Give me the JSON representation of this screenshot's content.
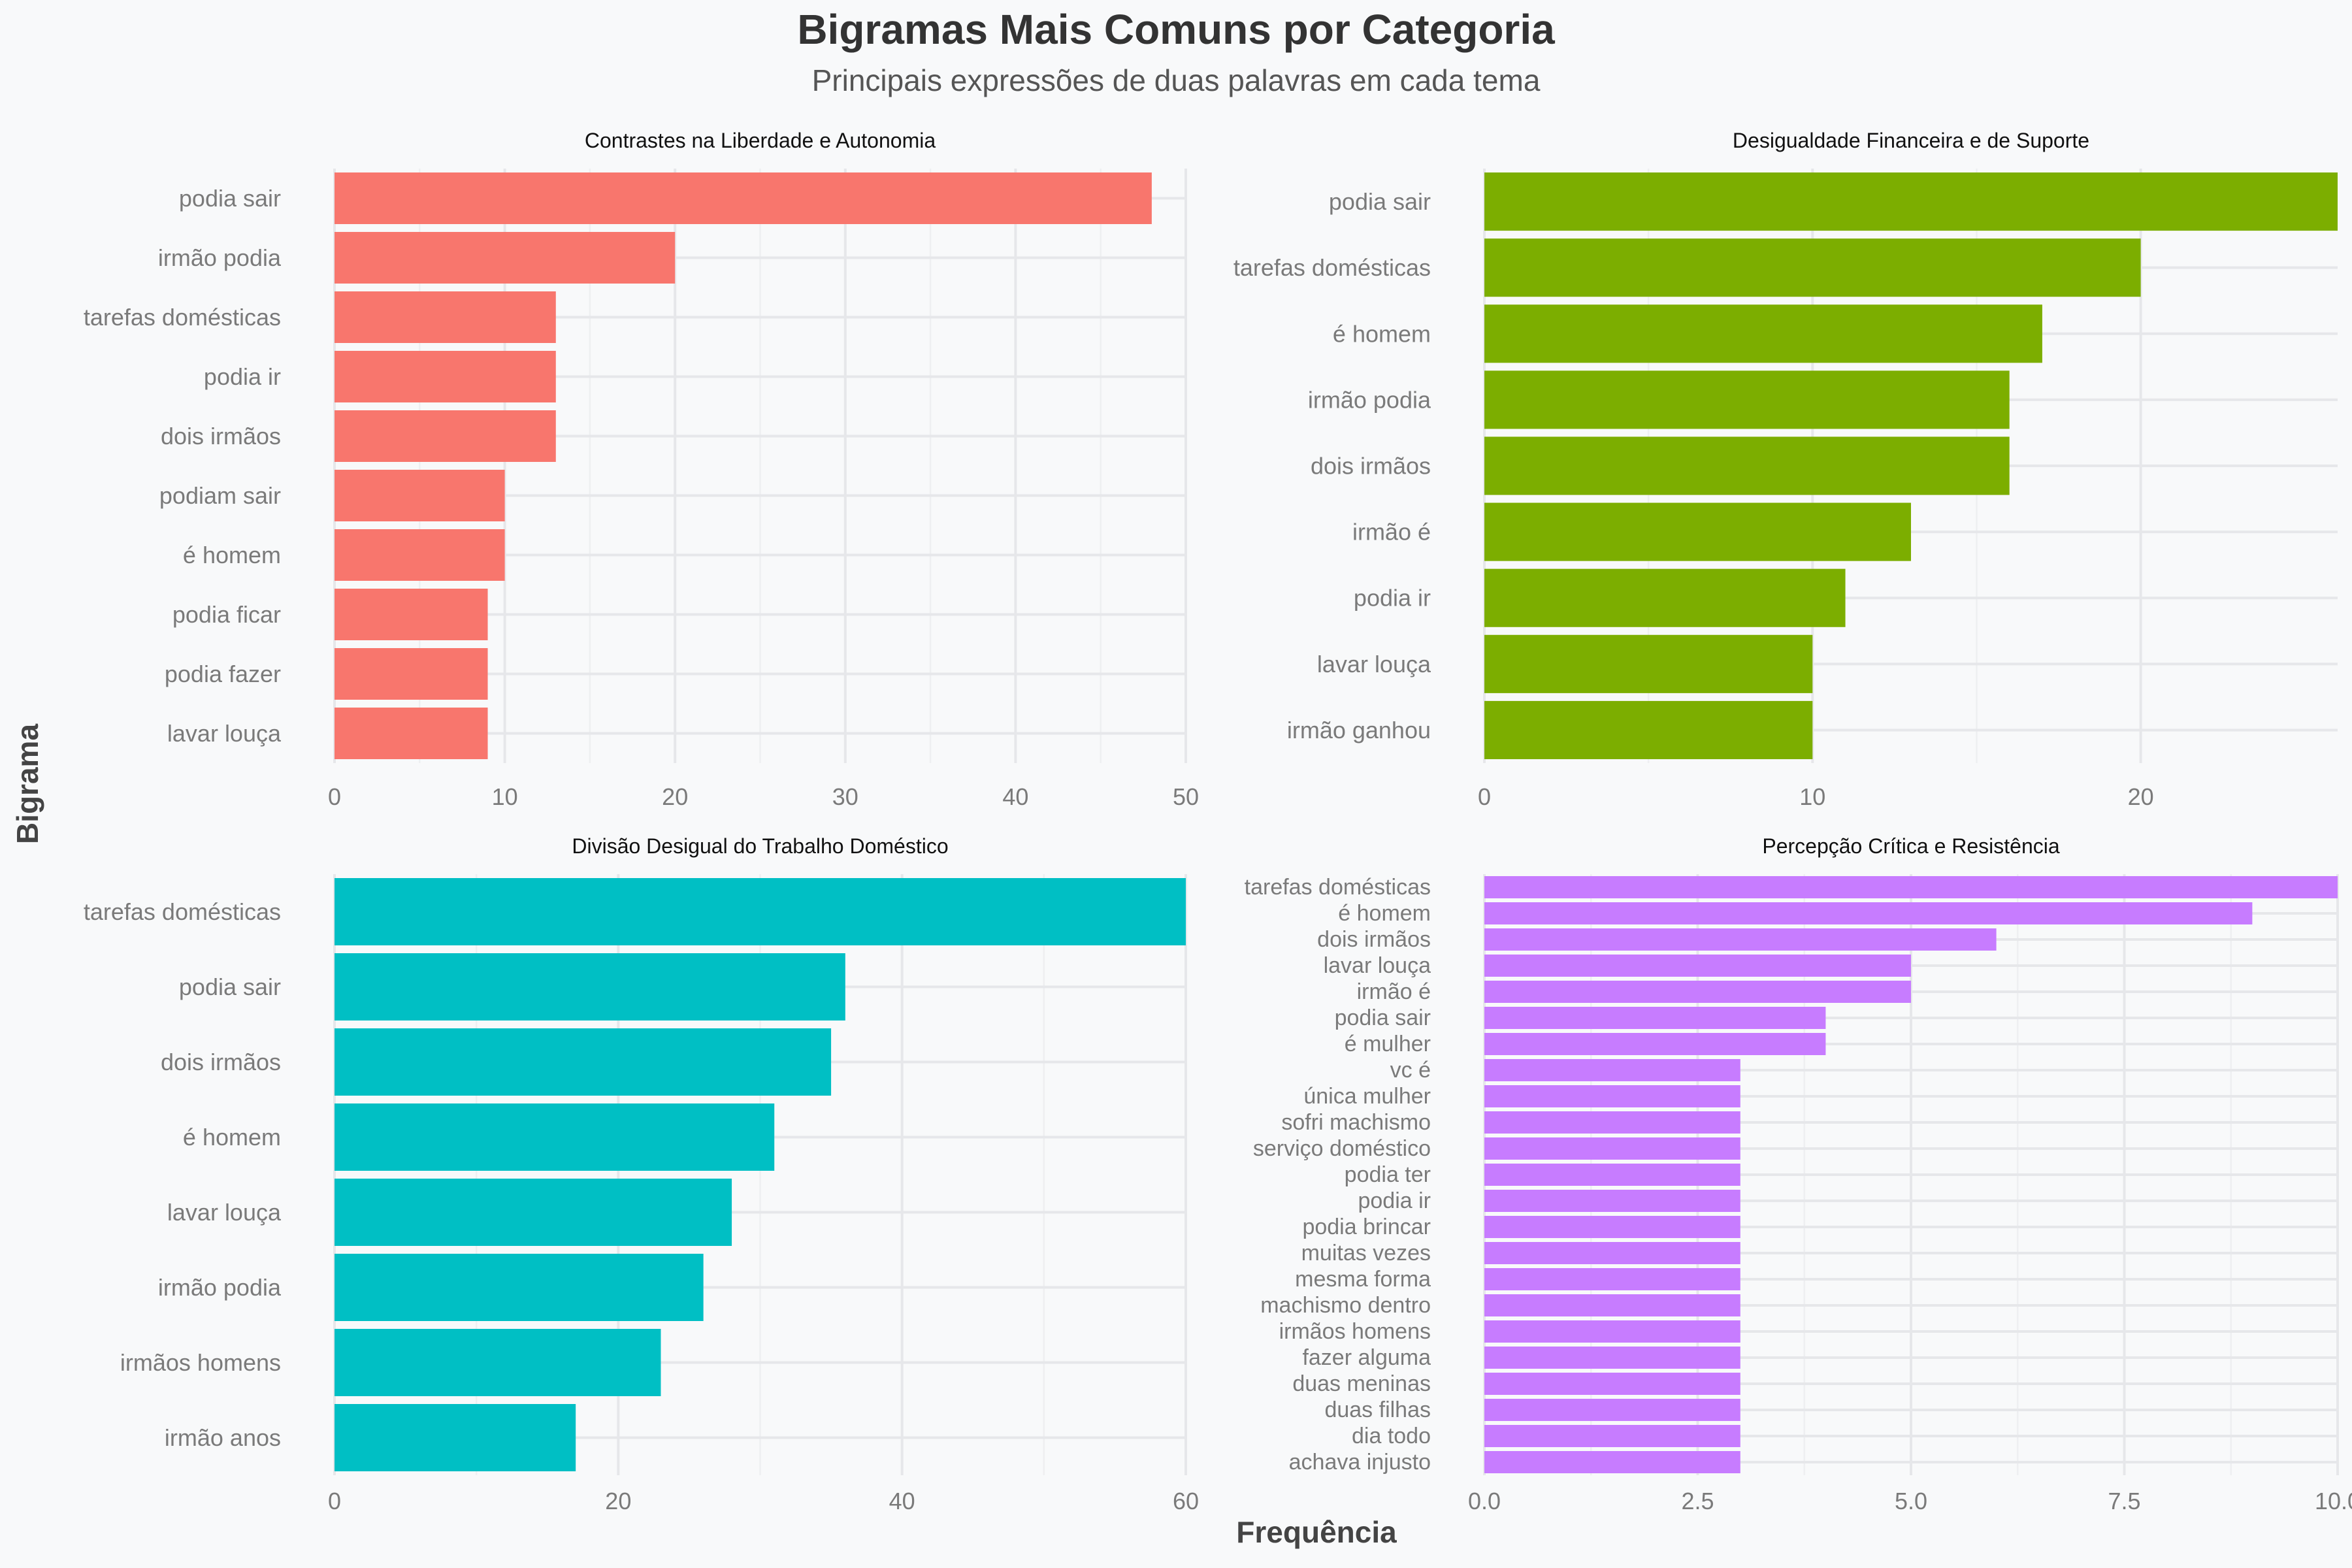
{
  "title": "Bigramas Mais Comuns por Categoria",
  "subtitle": "Principais expressões de duas palavras em cada tema",
  "ylabel": "Bigrama",
  "xlabel": "Frequência",
  "chart_data": [
    {
      "type": "bar",
      "orientation": "horizontal",
      "title": "Contrastes na Liberdade e Autonomia",
      "color": "#F8766D",
      "categories": [
        "podia sair",
        "irmão podia",
        "tarefas domésticas",
        "podia ir",
        "dois irmãos",
        "podiam sair",
        "é homem",
        "podia ficar",
        "podia fazer",
        "lavar louça"
      ],
      "values": [
        48,
        20,
        13,
        13,
        13,
        10,
        10,
        9,
        9,
        9
      ],
      "xlim": [
        0,
        50
      ],
      "xticks": [
        0,
        10,
        20,
        30,
        40,
        50
      ],
      "xtick_labels": [
        "0",
        "10",
        "20",
        "30",
        "40",
        "50"
      ]
    },
    {
      "type": "bar",
      "orientation": "horizontal",
      "title": "Desigualdade Financeira e de Suporte",
      "color": "#7CAE00",
      "categories": [
        "podia sair",
        "tarefas domésticas",
        "é homem",
        "irmão podia",
        "dois irmãos",
        "irmão é",
        "podia ir",
        "lavar louça",
        "irmão ganhou"
      ],
      "values": [
        26,
        20,
        17,
        16,
        16,
        13,
        11,
        10,
        10
      ],
      "xlim": [
        0,
        26
      ],
      "xticks": [
        0,
        10,
        20
      ],
      "xtick_labels": [
        "0",
        "10",
        "20"
      ]
    },
    {
      "type": "bar",
      "orientation": "horizontal",
      "title": "Divisão Desigual do Trabalho Doméstico",
      "color": "#00BFC4",
      "categories": [
        "tarefas domésticas",
        "podia sair",
        "dois irmãos",
        "é homem",
        "lavar louça",
        "irmão podia",
        "irmãos homens",
        "irmão anos"
      ],
      "values": [
        60,
        36,
        35,
        31,
        28,
        26,
        23,
        17
      ],
      "xlim": [
        0,
        60
      ],
      "xticks": [
        0,
        20,
        40,
        60
      ],
      "xtick_labels": [
        "0",
        "20",
        "40",
        "60"
      ]
    },
    {
      "type": "bar",
      "orientation": "horizontal",
      "title": "Percepção Crítica e Resistência",
      "color": "#C77CFF",
      "categories": [
        "tarefas domésticas",
        "é homem",
        "dois irmãos",
        "lavar louça",
        "irmão é",
        "podia sair",
        "é mulher",
        "vc é",
        "única mulher",
        "sofri machismo",
        "serviço doméstico",
        "podia ter",
        "podia ir",
        "podia brincar",
        "muitas vezes",
        "mesma forma",
        "machismo dentro",
        "irmãos homens",
        "fazer alguma",
        "duas meninas",
        "duas filhas",
        "dia todo",
        "achava injusto"
      ],
      "values": [
        10,
        9,
        6,
        5,
        5,
        4,
        4,
        3,
        3,
        3,
        3,
        3,
        3,
        3,
        3,
        3,
        3,
        3,
        3,
        3,
        3,
        3,
        3
      ],
      "xlim": [
        0,
        10
      ],
      "xticks": [
        0,
        2.5,
        5,
        7.5,
        10
      ],
      "xtick_labels": [
        "0.0",
        "2.5",
        "5.0",
        "7.5",
        "10.0"
      ]
    }
  ]
}
